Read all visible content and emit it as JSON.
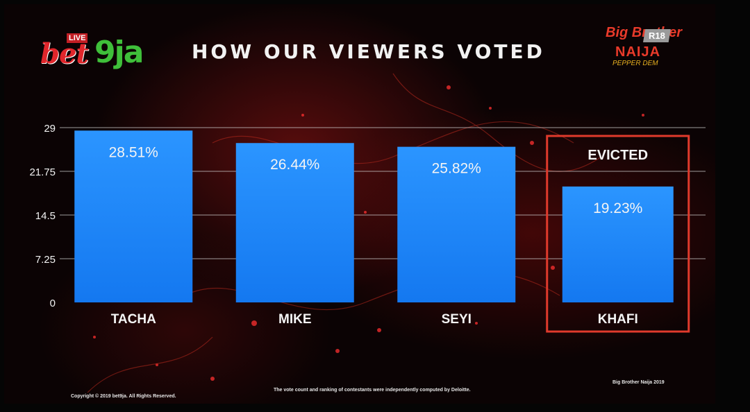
{
  "header": {
    "title": "HOW OUR VIEWERS VOTED",
    "broadcaster_logo_text": "bet9ja",
    "live_badge": "LIVE",
    "show_logo_text": "Big Brother NAIJA",
    "show_logo_subtitle": "PEPPER DEM",
    "rating_badge": "R18"
  },
  "chart_data": {
    "type": "bar",
    "categories": [
      "TACHA",
      "MIKE",
      "SEYI",
      "KHAFI"
    ],
    "values": [
      28.51,
      26.44,
      25.82,
      19.23
    ],
    "data_labels": [
      "28.51%",
      "26.44%",
      "25.82%",
      "19.23%"
    ],
    "y_ticks": [
      "29",
      "21.75",
      "14.5",
      "7.25",
      "0"
    ],
    "y_tick_values": [
      29,
      21.75,
      14.5,
      7.25,
      0
    ],
    "ylim": [
      0,
      29
    ],
    "grid": true,
    "highlight": {
      "category": "KHAFI",
      "label": "EVICTED",
      "color": "#e03a2c"
    },
    "bar_color": "#1f8bff"
  },
  "footer": {
    "copyright": "Copyright © 2019 bet9ja. All Rights Reserved.",
    "disclaimer": "The vote count and ranking of contestants were independently computed by Deloitte.",
    "credit": "Big Brother Naija 2019"
  },
  "colors": {
    "background": "#0b0304",
    "text": "#f2f2f2",
    "grid": "#cfcfcf"
  }
}
